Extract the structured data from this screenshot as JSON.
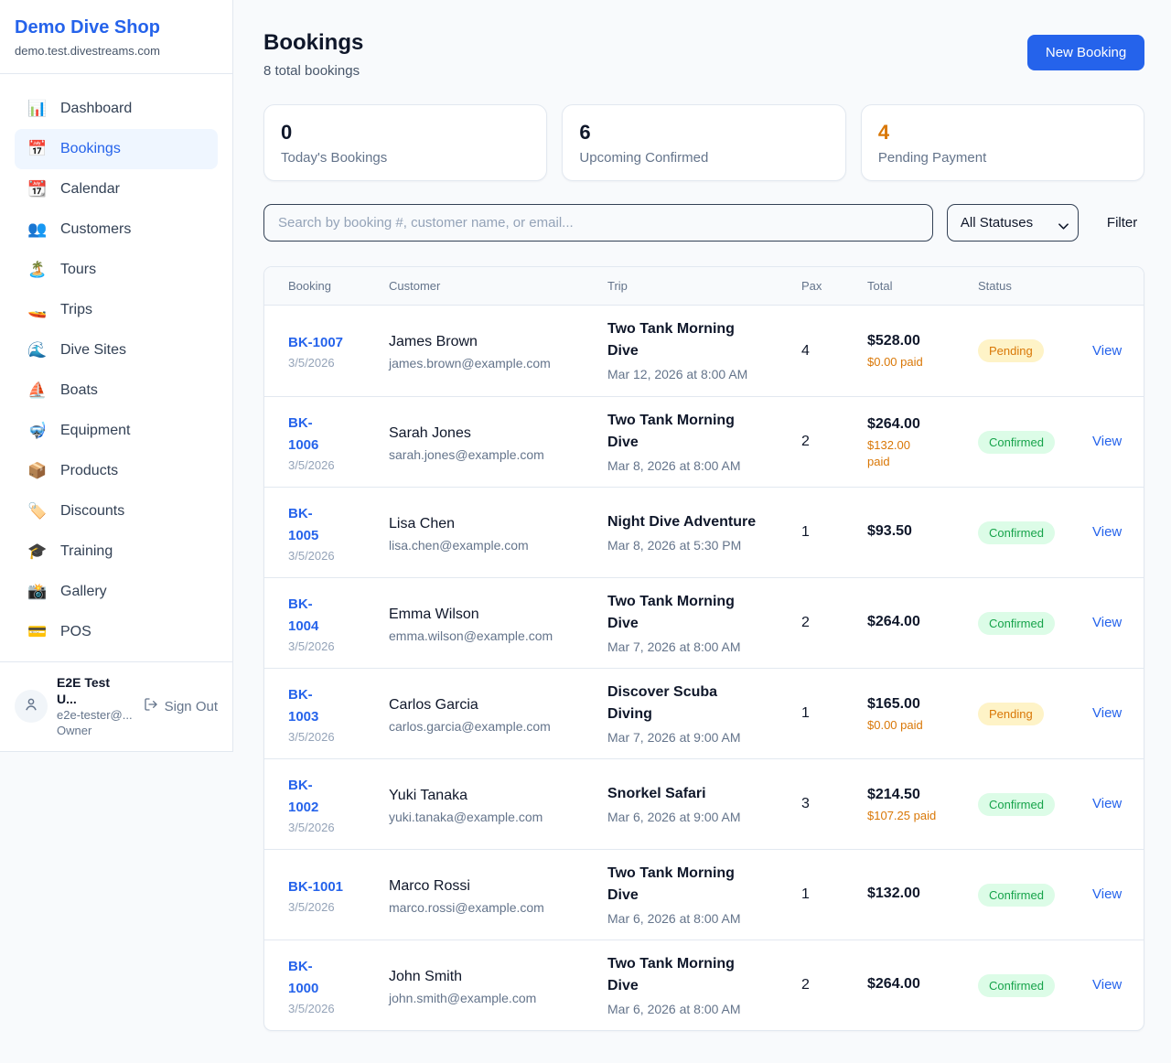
{
  "colors": {
    "accent": "#2563eb",
    "page_bg": "#f8fafc",
    "border": "#e2e8f0",
    "pending_text": "#d97706",
    "pending_bg": "#fef3c7",
    "confirmed_text": "#16a34a",
    "confirmed_bg": "#dcfce7"
  },
  "sidebar": {
    "brand": {
      "name": "Demo Dive Shop",
      "domain": "demo.test.divestreams.com"
    },
    "nav": [
      {
        "icon": "📊",
        "icon_name": "bar-chart-icon",
        "label": "Dashboard",
        "active": false
      },
      {
        "icon": "📅",
        "icon_name": "calendar-icon",
        "label": "Bookings",
        "active": true
      },
      {
        "icon": "📆",
        "icon_name": "tear-off-calendar-icon",
        "label": "Calendar",
        "active": false
      },
      {
        "icon": "👥",
        "icon_name": "people-icon",
        "label": "Customers",
        "active": false
      },
      {
        "icon": "🏝️",
        "icon_name": "island-icon",
        "label": "Tours",
        "active": false
      },
      {
        "icon": "🚤",
        "icon_name": "speedboat-icon",
        "label": "Trips",
        "active": false
      },
      {
        "icon": "🌊",
        "icon_name": "wave-icon",
        "label": "Dive Sites",
        "active": false
      },
      {
        "icon": "⛵",
        "icon_name": "sailboat-icon",
        "label": "Boats",
        "active": false
      },
      {
        "icon": "🤿",
        "icon_name": "diving-mask-icon",
        "label": "Equipment",
        "active": false
      },
      {
        "icon": "📦",
        "icon_name": "package-icon",
        "label": "Products",
        "active": false
      },
      {
        "icon": "🏷️",
        "icon_name": "tag-icon",
        "label": "Discounts",
        "active": false
      },
      {
        "icon": "🎓",
        "icon_name": "graduation-cap-icon",
        "label": "Training",
        "active": false
      },
      {
        "icon": "📸",
        "icon_name": "camera-icon",
        "label": "Gallery",
        "active": false
      },
      {
        "icon": "💳",
        "icon_name": "credit-card-icon",
        "label": "POS",
        "active": false
      }
    ],
    "user": {
      "name": "E2E Test U...",
      "email": "e2e-tester@...",
      "role": "Owner",
      "sign_out_label": "Sign Out"
    }
  },
  "header": {
    "title": "Bookings",
    "subtitle": "8 total bookings",
    "new_booking_label": "New Booking"
  },
  "stats": [
    {
      "value": "0",
      "label": "Today's Bookings",
      "value_color": "#0f172a"
    },
    {
      "value": "6",
      "label": "Upcoming Confirmed",
      "value_color": "#0f172a"
    },
    {
      "value": "4",
      "label": "Pending Payment",
      "value_color": "#d97706"
    }
  ],
  "filters": {
    "search_placeholder": "Search by booking #, customer name, or email...",
    "status_selected": "All Statuses",
    "filter_label": "Filter"
  },
  "table": {
    "columns": [
      "Booking",
      "Customer",
      "Trip",
      "Pax",
      "Total",
      "Status"
    ],
    "view_label": "View",
    "rows": [
      {
        "id": "BK-1007",
        "date": "3/5/2026",
        "customer": "James Brown",
        "email": "james.brown@example.com",
        "trip": "Two Tank Morning\nDive",
        "trip_time": "Mar 12, 2026 at 8:00 AM",
        "pax": "4",
        "total": "$528.00",
        "paid": "$0.00 paid",
        "status": "Pending"
      },
      {
        "id": "BK-\n1006",
        "date": "3/5/2026",
        "customer": "Sarah Jones",
        "email": "sarah.jones@example.com",
        "trip": "Two Tank Morning\nDive",
        "trip_time": "Mar 8, 2026 at 8:00 AM",
        "pax": "2",
        "total": "$264.00",
        "paid": "$132.00\npaid",
        "status": "Confirmed"
      },
      {
        "id": "BK-\n1005",
        "date": "3/5/2026",
        "customer": "Lisa Chen",
        "email": "lisa.chen@example.com",
        "trip": "Night Dive Adventure",
        "trip_time": "Mar 8, 2026 at 5:30 PM",
        "pax": "1",
        "total": "$93.50",
        "paid": "",
        "status": "Confirmed"
      },
      {
        "id": "BK-\n1004",
        "date": "3/5/2026",
        "customer": "Emma Wilson",
        "email": "emma.wilson@example.com",
        "trip": "Two Tank Morning\nDive",
        "trip_time": "Mar 7, 2026 at 8:00 AM",
        "pax": "2",
        "total": "$264.00",
        "paid": "",
        "status": "Confirmed"
      },
      {
        "id": "BK-\n1003",
        "date": "3/5/2026",
        "customer": "Carlos Garcia",
        "email": "carlos.garcia@example.com",
        "trip": "Discover Scuba\nDiving",
        "trip_time": "Mar 7, 2026 at 9:00 AM",
        "pax": "1",
        "total": "$165.00",
        "paid": "$0.00 paid",
        "status": "Pending"
      },
      {
        "id": "BK-\n1002",
        "date": "3/5/2026",
        "customer": "Yuki Tanaka",
        "email": "yuki.tanaka@example.com",
        "trip": "Snorkel Safari",
        "trip_time": "Mar 6, 2026 at 9:00 AM",
        "pax": "3",
        "total": "$214.50",
        "paid": "$107.25 paid",
        "status": "Confirmed"
      },
      {
        "id": "BK-1001",
        "date": "3/5/2026",
        "customer": "Marco Rossi",
        "email": "marco.rossi@example.com",
        "trip": "Two Tank Morning\nDive",
        "trip_time": "Mar 6, 2026 at 8:00 AM",
        "pax": "1",
        "total": "$132.00",
        "paid": "",
        "status": "Confirmed"
      },
      {
        "id": "BK-\n1000",
        "date": "3/5/2026",
        "customer": "John Smith",
        "email": "john.smith@example.com",
        "trip": "Two Tank Morning\nDive",
        "trip_time": "Mar 6, 2026 at 8:00 AM",
        "pax": "2",
        "total": "$264.00",
        "paid": "",
        "status": "Confirmed"
      }
    ]
  }
}
